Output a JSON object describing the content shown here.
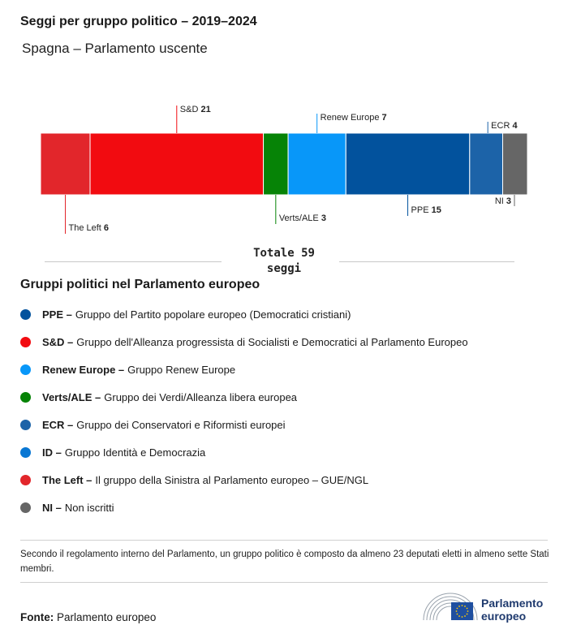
{
  "header": {
    "title": "Seggi per gruppo politico – 2019–2024",
    "subtitle": "Spagna – Parlamento uscente"
  },
  "chart_data": {
    "type": "bar",
    "orientation": "horizontal-stacked",
    "segments": [
      {
        "name": "The Left",
        "value": 6,
        "color": "#e2262b",
        "label_side": "bottom"
      },
      {
        "name": "S&D",
        "value": 21,
        "color": "#f20b10",
        "label_side": "top"
      },
      {
        "name": "Verts/ALE",
        "value": 3,
        "color": "#068306",
        "label_side": "bottom"
      },
      {
        "name": "Renew Europe",
        "value": 7,
        "color": "#0897f9",
        "label_side": "top"
      },
      {
        "name": "PPE",
        "value": 15,
        "color": "#02529d",
        "label_side": "bottom"
      },
      {
        "name": "ECR",
        "value": 4,
        "color": "#1c63a8",
        "label_side": "top"
      },
      {
        "name": "NI",
        "value": 3,
        "color": "#666666",
        "label_side": "bottom"
      }
    ],
    "total": {
      "value": "Totale 59",
      "unit": "seggi"
    }
  },
  "legend": {
    "title": "Gruppi politici nel Parlamento europeo",
    "items": [
      {
        "abbr": "PPE –",
        "desc": "Gruppo del Partito popolare europeo (Democratici cristiani)",
        "color": "#02529d"
      },
      {
        "abbr": "S&D –",
        "desc": "Gruppo dell'Alleanza progressista di Socialisti e Democratici al Parlamento Europeo",
        "color": "#f20b10"
      },
      {
        "abbr": "Renew Europe –",
        "desc": "Gruppo Renew Europe",
        "color": "#0897f9"
      },
      {
        "abbr": "Verts/ALE –",
        "desc": "Gruppo dei Verdi/Alleanza libera europea",
        "color": "#068306"
      },
      {
        "abbr": "ECR –",
        "desc": "Gruppo dei Conservatori e Riformisti europei",
        "color": "#1c63a8"
      },
      {
        "abbr": "ID –",
        "desc": "Gruppo Identità e Democrazia",
        "color": "#0977d3"
      },
      {
        "abbr": "The Left –",
        "desc": "Il gruppo della Sinistra al Parlamento europeo – GUE/NGL",
        "color": "#e2262b"
      },
      {
        "abbr": "NI –",
        "desc": "Non iscritti",
        "color": "#666666"
      }
    ]
  },
  "note": "Secondo il regolamento interno del Parlamento, un gruppo politico è composto da almeno 23 deputati eletti in almeno sette Stati membri.",
  "source": {
    "label": "Fonte:",
    "value": "Parlamento europeo"
  },
  "logo": {
    "line1": "Parlamento",
    "line2": "europeo",
    "flag_color": "#1f4fa0",
    "star_color": "#ffcc00"
  }
}
